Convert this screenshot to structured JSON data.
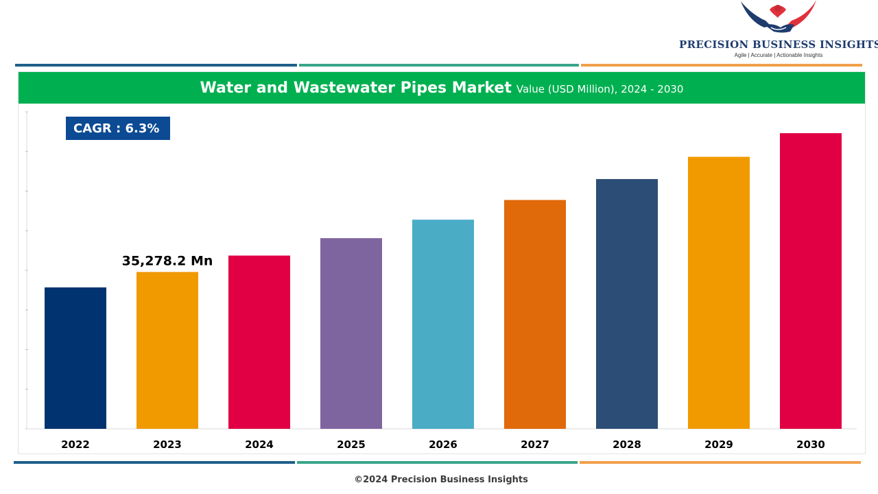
{
  "brand": {
    "name": "PRECISION BUSINESS INSIGHTS",
    "tagline": "Agile | Accurate | Actionable Insights",
    "colors": {
      "wing": "#1f3c6e",
      "accent": "#e0323c"
    }
  },
  "stripes": {
    "colors": [
      "#1f5f8b",
      "#3aa58a",
      "#f0a04b"
    ]
  },
  "header": {
    "title": "Water and Wastewater Pipes Market",
    "subtitle": "Value (USD Million), 2024 - 2030",
    "bg_color": "#00b050"
  },
  "cagr": {
    "label": "CAGR : 6.3%",
    "bg_color": "#0c4a94"
  },
  "chart_data": {
    "type": "bar",
    "title": "Water and Wastewater Pipes Market",
    "subtitle": "Value (USD Million), 2024 - 2030",
    "categories": [
      "2022",
      "2023",
      "2024",
      "2025",
      "2026",
      "2027",
      "2028",
      "2029",
      "2030"
    ],
    "values": [
      33185.3,
      35278.2,
      37500.8,
      39863.3,
      42374.7,
      45044.3,
      47882.1,
      50898.6,
      54105.2
    ],
    "colors": [
      "#00336f",
      "#f09a00",
      "#e10043",
      "#7f65a0",
      "#4bacc6",
      "#e0690a",
      "#2c4d75",
      "#f09a00",
      "#e10043"
    ],
    "data_labels": [
      {
        "category": "2023",
        "text": "35,278.2 Mn"
      }
    ],
    "ylim": [
      14000,
      57000
    ],
    "grid": false,
    "legend": "none",
    "xlabel": "",
    "ylabel": ""
  },
  "footer": {
    "copyright": "©2024 Precision Business Insights"
  }
}
